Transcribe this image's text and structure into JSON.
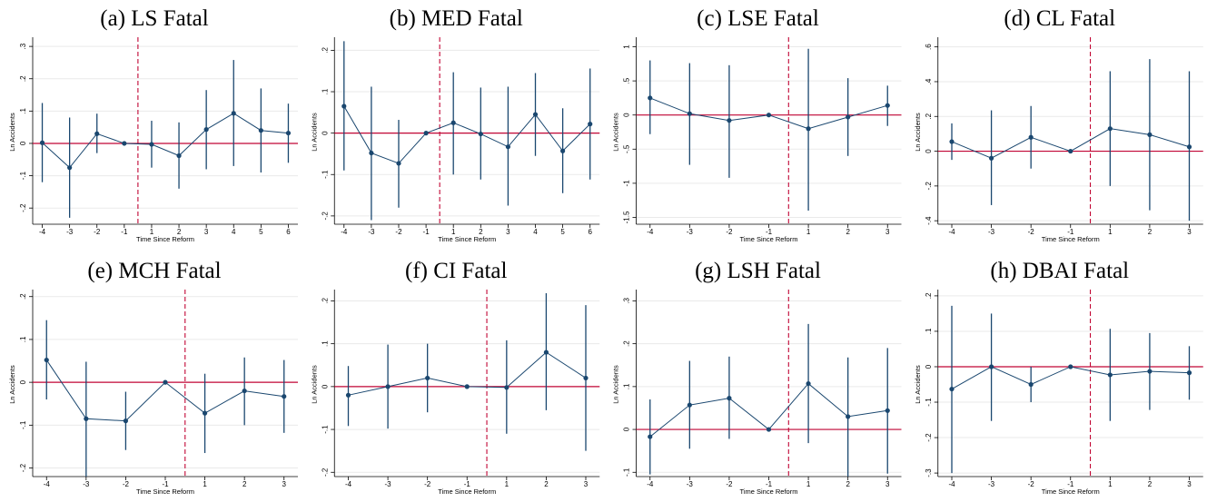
{
  "chart_data": [
    {
      "type": "errorbar",
      "title": "(a) LS Fatal",
      "ylabel": "Ln Accidents",
      "xlabel": "Time Since Reform",
      "categories": [
        -4,
        -3,
        -2,
        -1,
        1,
        2,
        3,
        4,
        5,
        6
      ],
      "values": [
        0.002,
        -0.075,
        0.03,
        0,
        -0.003,
        -0.038,
        0.043,
        0.093,
        0.04,
        0.032
      ],
      "ci_low": [
        -0.12,
        -0.23,
        -0.03,
        null,
        -0.075,
        -0.14,
        -0.08,
        -0.07,
        -0.09,
        -0.06
      ],
      "ci_high": [
        0.125,
        0.08,
        0.092,
        null,
        0.07,
        0.065,
        0.165,
        0.258,
        0.17,
        0.123
      ],
      "ylim": [
        -0.25,
        0.32
      ],
      "yticks": [
        {
          "value": -0.2,
          "label": "-.2"
        },
        {
          "value": -0.1,
          "label": "-.1"
        },
        0,
        {
          "value": 0.1,
          "label": ".1"
        },
        {
          "value": 0.2,
          "label": ".2"
        },
        {
          "value": 0.3,
          "label": ".3"
        }
      ],
      "color": "#1a476f",
      "reform_line": true,
      "zero_line": true,
      "line_color": "#c10534",
      "grid": true
    },
    {
      "type": "errorbar",
      "title": "(b) MED Fatal",
      "ylabel": "Ln Accidents",
      "xlabel": "Time Since Reform",
      "categories": [
        -4,
        -3,
        -2,
        -1,
        1,
        2,
        3,
        4,
        5,
        6
      ],
      "values": [
        0.065,
        -0.048,
        -0.073,
        0,
        0.025,
        -0.002,
        -0.033,
        0.045,
        -0.043,
        0.022
      ],
      "ci_low": [
        -0.09,
        -0.21,
        -0.18,
        null,
        -0.1,
        -0.112,
        -0.175,
        -0.055,
        -0.145,
        -0.112
      ],
      "ci_high": [
        0.222,
        0.112,
        0.032,
        null,
        0.147,
        0.11,
        0.112,
        0.145,
        0.06,
        0.156
      ],
      "ylim": [
        -0.22,
        0.225
      ],
      "yticks": [
        {
          "value": -0.2,
          "label": "-.2"
        },
        {
          "value": -0.1,
          "label": "-.1"
        },
        0,
        {
          "value": 0.1,
          "label": ".1"
        },
        {
          "value": 0.2,
          "label": ".2"
        }
      ],
      "color": "#1a476f",
      "reform_line": true,
      "zero_line": true,
      "line_color": "#c10534",
      "grid": true
    },
    {
      "type": "errorbar",
      "title": "(c) LSE Fatal",
      "ylabel": "Ln Accidents",
      "xlabel": "Time Since Reform",
      "categories": [
        -4,
        -3,
        -2,
        -1,
        1,
        2,
        3
      ],
      "values": [
        0.25,
        0.02,
        -0.08,
        0,
        -0.2,
        -0.03,
        0.14
      ],
      "ci_low": [
        -0.28,
        -0.73,
        -0.92,
        null,
        -1.4,
        -0.6,
        -0.16
      ],
      "ci_high": [
        0.8,
        0.76,
        0.73,
        null,
        0.97,
        0.54,
        0.43
      ],
      "ylim": [
        -1.6,
        1.1
      ],
      "yticks": [
        -1.5,
        -1,
        {
          "value": -0.5,
          "label": "-.5"
        },
        0,
        {
          "value": 0.5,
          "label": ".5"
        },
        1
      ],
      "color": "#1a476f",
      "reform_line": true,
      "zero_line": true,
      "line_color": "#c10534",
      "grid": true
    },
    {
      "type": "errorbar",
      "title": "(d) CL Fatal",
      "ylabel": "Ln Accidents",
      "xlabel": "Time Since Reform",
      "categories": [
        -4,
        -3,
        -2,
        -1,
        1,
        2,
        3
      ],
      "values": [
        0.055,
        -0.04,
        0.08,
        0,
        0.13,
        0.095,
        0.025
      ],
      "ci_low": [
        -0.05,
        -0.31,
        -0.1,
        null,
        -0.2,
        -0.34,
        -0.4
      ],
      "ci_high": [
        0.16,
        0.235,
        0.26,
        null,
        0.46,
        0.53,
        0.46
      ],
      "ylim": [
        -0.42,
        0.64
      ],
      "yticks": [
        {
          "value": -0.4,
          "label": "-.4"
        },
        {
          "value": -0.2,
          "label": "-.2"
        },
        0,
        {
          "value": 0.2,
          "label": ".2"
        },
        {
          "value": 0.4,
          "label": ".4"
        },
        {
          "value": 0.6,
          "label": ".6"
        }
      ],
      "color": "#1a476f",
      "reform_line": true,
      "zero_line": true,
      "line_color": "#c10534",
      "grid": true
    },
    {
      "type": "errorbar",
      "title": "(e) MCH Fatal",
      "ylabel": "Ln Accidents",
      "xlabel": "Time Since Reform",
      "categories": [
        -4,
        -3,
        -2,
        -1,
        1,
        2,
        3
      ],
      "values": [
        0.052,
        -0.085,
        -0.09,
        0,
        -0.072,
        -0.02,
        -0.033
      ],
      "ci_low": [
        -0.04,
        -0.22,
        -0.158,
        null,
        -0.165,
        -0.1,
        -0.118
      ],
      "ci_high": [
        0.145,
        0.048,
        -0.022,
        null,
        0.02,
        0.058,
        0.052
      ],
      "ylim": [
        -0.22,
        0.21
      ],
      "yticks": [
        {
          "value": -0.2,
          "label": "-.2"
        },
        {
          "value": -0.1,
          "label": "-.1"
        },
        0,
        {
          "value": 0.1,
          "label": ".1"
        },
        {
          "value": 0.2,
          "label": ".2"
        }
      ],
      "color": "#1a476f",
      "reform_line": true,
      "zero_line": true,
      "line_color": "#c10534",
      "grid": true
    },
    {
      "type": "errorbar",
      "title": "(f) CI Fatal",
      "ylabel": "Ln Accidents",
      "xlabel": "Time Since Reform",
      "categories": [
        -4,
        -3,
        -2,
        -1,
        1,
        2,
        3
      ],
      "values": [
        -0.02,
        0,
        0.02,
        0,
        -0.002,
        0.08,
        0.02
      ],
      "ci_low": [
        -0.092,
        -0.098,
        -0.06,
        null,
        -0.11,
        -0.055,
        -0.15
      ],
      "ci_high": [
        0.048,
        0.098,
        0.1,
        null,
        0.108,
        0.218,
        0.19
      ],
      "ylim": [
        -0.21,
        0.22
      ],
      "yticks": [
        {
          "value": -0.2,
          "label": "-.2"
        },
        {
          "value": -0.1,
          "label": "-.1"
        },
        0,
        {
          "value": 0.1,
          "label": ".1"
        },
        {
          "value": 0.2,
          "label": ".2"
        }
      ],
      "color": "#1a476f",
      "reform_line": true,
      "zero_line": true,
      "line_color": "#c10534",
      "grid": true
    },
    {
      "type": "errorbar",
      "title": "(g) LSH Fatal",
      "ylabel": "Ln Accidents",
      "xlabel": "Time Since Reform",
      "categories": [
        -4,
        -3,
        -2,
        -1,
        1,
        2,
        3
      ],
      "values": [
        -0.017,
        0.057,
        0.073,
        0,
        0.107,
        0.03,
        0.044
      ],
      "ci_low": [
        -0.105,
        -0.045,
        -0.022,
        null,
        -0.032,
        -0.11,
        -0.103
      ],
      "ci_high": [
        0.07,
        0.16,
        0.17,
        null,
        0.246,
        0.168,
        0.19
      ],
      "ylim": [
        -0.11,
        0.32
      ],
      "yticks": [
        {
          "value": -0.1,
          "label": "-.1"
        },
        0,
        {
          "value": 0.1,
          "label": ".1"
        },
        {
          "value": 0.2,
          "label": ".2"
        },
        {
          "value": 0.3,
          "label": ".3"
        }
      ],
      "color": "#1a476f",
      "reform_line": true,
      "zero_line": true,
      "line_color": "#c10534",
      "grid": true
    },
    {
      "type": "errorbar",
      "title": "(h) DBAI Fatal",
      "ylabel": "Ln Accidents",
      "xlabel": "Time Since Reform",
      "categories": [
        -4,
        -3,
        -2,
        -1,
        1,
        2,
        3
      ],
      "values": [
        -0.063,
        0,
        -0.05,
        0,
        -0.023,
        -0.013,
        -0.017
      ],
      "ci_low": [
        -0.3,
        -0.153,
        -0.1,
        null,
        -0.153,
        -0.122,
        -0.093
      ],
      "ci_high": [
        0.172,
        0.15,
        0,
        null,
        0.107,
        0.095,
        0.058
      ],
      "ylim": [
        -0.31,
        0.21
      ],
      "yticks": [
        {
          "value": -0.3,
          "label": "-.3"
        },
        {
          "value": -0.2,
          "label": "-.2"
        },
        {
          "value": -0.1,
          "label": "-.1"
        },
        0,
        {
          "value": 0.1,
          "label": ".1"
        },
        {
          "value": 0.2,
          "label": ".2"
        }
      ],
      "color": "#1a476f",
      "reform_line": true,
      "zero_line": true,
      "line_color": "#c10534",
      "grid": true
    }
  ]
}
